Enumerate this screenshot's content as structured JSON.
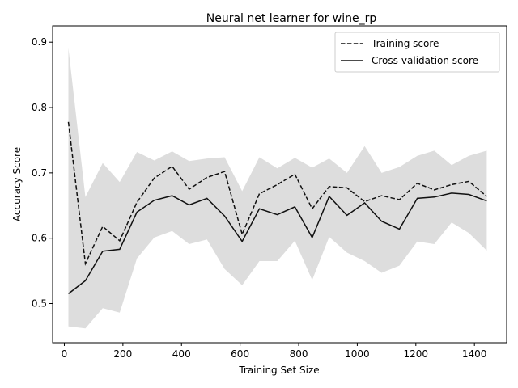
{
  "chart_data": {
    "type": "line",
    "title": "Neural net learner for wine_rp",
    "xlabel": "Training Set Size",
    "ylabel": "Accuracy Score",
    "xlim": [
      -40,
      1510
    ],
    "ylim": [
      0.44,
      0.925
    ],
    "xticks": [
      0,
      200,
      400,
      600,
      800,
      1000,
      1200,
      1400
    ],
    "yticks": [
      0.5,
      0.6,
      0.7,
      0.8,
      0.9
    ],
    "ytick_labels": [
      "0.5",
      "0.6",
      "0.7",
      "0.8",
      "0.9"
    ],
    "grid": false,
    "legend_position": "upper-right",
    "x": [
      14,
      72,
      131,
      189,
      248,
      307,
      368,
      426,
      487,
      547,
      607,
      666,
      727,
      787,
      846,
      904,
      965,
      1025,
      1083,
      1144,
      1205,
      1263,
      1322,
      1381,
      1442
    ],
    "series": [
      {
        "name": "Training score",
        "style": "dashed",
        "color": "#111111",
        "values": [
          0.778,
          0.561,
          0.618,
          0.596,
          0.655,
          0.692,
          0.71,
          0.675,
          0.693,
          0.702,
          0.606,
          0.668,
          0.682,
          0.698,
          0.645,
          0.679,
          0.677,
          0.656,
          0.665,
          0.659,
          0.684,
          0.674,
          0.682,
          0.687,
          0.664
        ]
      },
      {
        "name": "Cross-validation score",
        "style": "solid",
        "color": "#111111",
        "values": [
          0.515,
          0.535,
          0.58,
          0.583,
          0.64,
          0.658,
          0.665,
          0.651,
          0.661,
          0.634,
          0.595,
          0.645,
          0.636,
          0.648,
          0.601,
          0.664,
          0.635,
          0.654,
          0.626,
          0.614,
          0.661,
          0.663,
          0.669,
          0.667,
          0.657
        ]
      }
    ],
    "band": {
      "color": "#dddddd",
      "upper": [
        0.891,
        0.663,
        0.715,
        0.686,
        0.732,
        0.719,
        0.733,
        0.718,
        0.722,
        0.724,
        0.672,
        0.724,
        0.707,
        0.723,
        0.708,
        0.722,
        0.7,
        0.741,
        0.7,
        0.709,
        0.726,
        0.734,
        0.712,
        0.726,
        0.734
      ],
      "lower": [
        0.465,
        0.462,
        0.493,
        0.486,
        0.569,
        0.601,
        0.611,
        0.591,
        0.598,
        0.553,
        0.528,
        0.565,
        0.565,
        0.596,
        0.536,
        0.602,
        0.578,
        0.565,
        0.547,
        0.558,
        0.595,
        0.591,
        0.624,
        0.608,
        0.581
      ]
    }
  }
}
